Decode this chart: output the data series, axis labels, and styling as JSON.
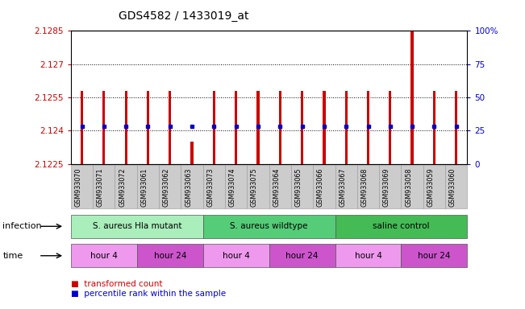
{
  "title": "GDS4582 / 1433019_at",
  "samples": [
    "GSM933070",
    "GSM933071",
    "GSM933072",
    "GSM933061",
    "GSM933062",
    "GSM933063",
    "GSM933073",
    "GSM933074",
    "GSM933075",
    "GSM933064",
    "GSM933065",
    "GSM933066",
    "GSM933067",
    "GSM933068",
    "GSM933069",
    "GSM933058",
    "GSM933059",
    "GSM933060"
  ],
  "bar_tops": [
    2.1258,
    2.1258,
    2.1258,
    2.1258,
    2.1258,
    2.1235,
    2.1258,
    2.1258,
    2.1258,
    2.1258,
    2.1258,
    2.1258,
    2.1258,
    2.1258,
    2.1258,
    2.1285,
    2.1258,
    2.1258
  ],
  "bar_base": 2.1225,
  "blue_marker_vals": [
    2.1242,
    2.1242,
    2.1242,
    2.1242,
    2.1242,
    2.1242,
    2.1242,
    2.1242,
    2.1242,
    2.1242,
    2.1242,
    2.1242,
    2.1242,
    2.1242,
    2.1242,
    2.1242,
    2.1242,
    2.1242
  ],
  "blue_visible": [
    true,
    true,
    true,
    true,
    true,
    false,
    true,
    true,
    true,
    true,
    true,
    true,
    true,
    true,
    true,
    true,
    true,
    true
  ],
  "blue_col5_val": 2.1242,
  "ylim_left": [
    2.1225,
    2.1285
  ],
  "yticks_left": [
    2.1225,
    2.124,
    2.1255,
    2.127,
    2.1285
  ],
  "ytick_labels_left": [
    "2.1225",
    "2.124",
    "2.1255",
    "2.127",
    "2.1285"
  ],
  "yticks_right": [
    0,
    25,
    50,
    75,
    100
  ],
  "ytick_labels_right": [
    "0",
    "25",
    "50",
    "75",
    "100%"
  ],
  "bar_color": "#cc0000",
  "blue_color": "#0000cc",
  "left_tick_color": "#cc0000",
  "right_tick_color": "#0000cc",
  "infection_groups": [
    {
      "label": "S. aureus Hla mutant",
      "start": 0,
      "end": 5,
      "color": "#aaeebb"
    },
    {
      "label": "S. aureus wildtype",
      "start": 6,
      "end": 11,
      "color": "#55cc77"
    },
    {
      "label": "saline control",
      "start": 12,
      "end": 17,
      "color": "#44bb55"
    }
  ],
  "time_groups": [
    {
      "label": "hour 4",
      "start": 0,
      "end": 2,
      "color": "#ee99ee"
    },
    {
      "label": "hour 24",
      "start": 3,
      "end": 5,
      "color": "#cc55cc"
    },
    {
      "label": "hour 4",
      "start": 6,
      "end": 8,
      "color": "#ee99ee"
    },
    {
      "label": "hour 24",
      "start": 9,
      "end": 11,
      "color": "#cc55cc"
    },
    {
      "label": "hour 4",
      "start": 12,
      "end": 14,
      "color": "#ee99ee"
    },
    {
      "label": "hour 24",
      "start": 15,
      "end": 17,
      "color": "#cc55cc"
    }
  ],
  "infection_label": "infection",
  "time_label": "time",
  "legend_items": [
    {
      "label": "transformed count",
      "color": "#cc0000"
    },
    {
      "label": "percentile rank within the sample",
      "color": "#0000cc"
    }
  ],
  "bg_color": "#ffffff",
  "plot_bg_color": "#ffffff",
  "bar_width": 0.12,
  "sample_bg_color": "#cccccc"
}
